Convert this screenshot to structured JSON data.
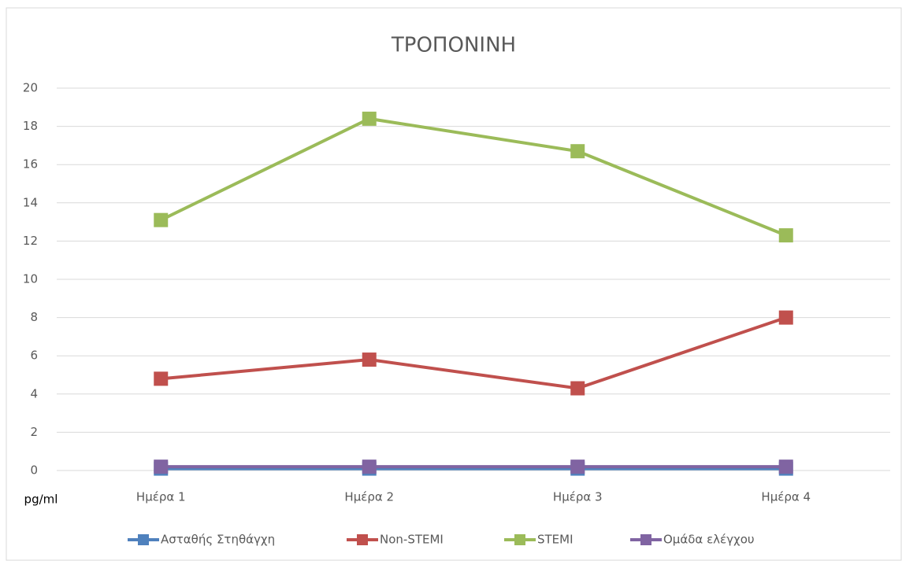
{
  "chart_data": {
    "type": "line",
    "title": "ΤΡΟΠΟΝΙΝΗ",
    "y_label": "pg/ml",
    "categories": [
      "Ημέρα 1",
      "Ημέρα 2",
      "Ημέρα 3",
      "Ημέρα 4"
    ],
    "series": [
      {
        "name": "Ασταθής Στηθάγχη",
        "color": "#4f81bd",
        "values": [
          0.1,
          0.1,
          0.1,
          0.1
        ]
      },
      {
        "name": "Non-STEMI",
        "color": "#c0504d",
        "values": [
          4.8,
          5.8,
          4.3,
          8.0
        ]
      },
      {
        "name": "STEMI",
        "color": "#9bbb59",
        "values": [
          13.1,
          18.4,
          16.7,
          12.3
        ]
      },
      {
        "name": "Ομάδα ελέγχου",
        "color": "#8064a2",
        "values": [
          0.2,
          0.2,
          0.2,
          0.2
        ]
      }
    ],
    "ylim": [
      0,
      20
    ],
    "yticks": [
      0,
      2,
      4,
      6,
      8,
      10,
      12,
      14,
      16,
      18,
      20
    ],
    "grid": true,
    "legend": "bottom"
  }
}
